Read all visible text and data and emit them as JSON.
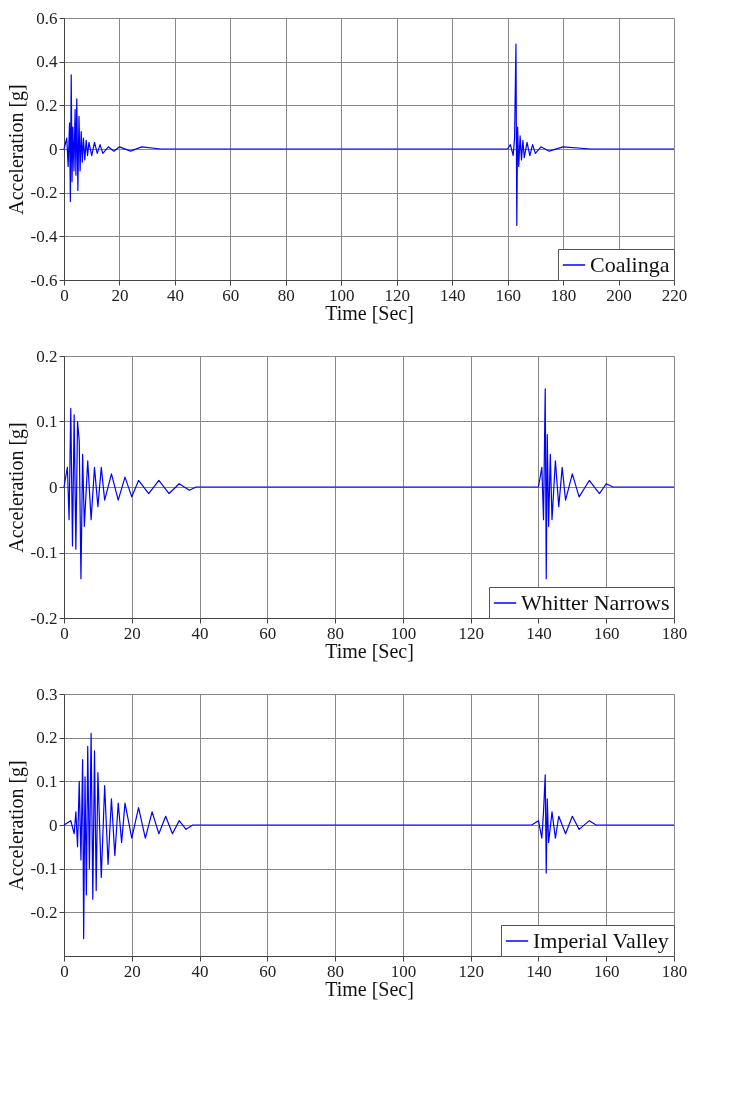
{
  "chart_data": [
    {
      "type": "line",
      "xlabel": "Time [Sec]",
      "ylabel": "Acceleration [g]",
      "xlim": [
        0,
        220
      ],
      "xticks": [
        0,
        20,
        40,
        60,
        80,
        100,
        120,
        140,
        160,
        180,
        200,
        220
      ],
      "ylim": [
        -0.6,
        0.6
      ],
      "yticks": [
        -0.6,
        -0.4,
        -0.2,
        0,
        0.2,
        0.4,
        0.6
      ],
      "grid": true,
      "legend": "bottom right",
      "line_style": "solid",
      "series": [
        {
          "name": "Coalinga",
          "color": "#0000ff",
          "x": [
            0,
            1,
            1.5,
            2,
            2.3,
            2.6,
            2.9,
            3.2,
            3.6,
            4,
            4.3,
            4.6,
            5,
            5.4,
            5.8,
            6.2,
            6.6,
            7,
            7.5,
            8,
            8.5,
            9,
            10,
            11,
            12,
            13,
            14,
            16,
            18,
            20,
            24,
            28,
            35,
            50,
            100,
            150,
            160,
            161,
            162,
            162.5,
            163,
            163.3,
            163.6,
            164,
            164.5,
            165,
            165.5,
            166,
            167,
            168,
            169,
            170,
            172,
            175,
            180,
            190,
            200,
            220
          ],
          "values": [
            0,
            0.05,
            -0.08,
            0.12,
            -0.24,
            0.34,
            -0.15,
            0.1,
            -0.1,
            0.18,
            -0.12,
            0.23,
            -0.19,
            0.15,
            -0.1,
            0.08,
            -0.06,
            0.05,
            -0.05,
            0.04,
            -0.03,
            0.03,
            -0.03,
            0.03,
            -0.02,
            0.02,
            -0.02,
            0.01,
            -0.01,
            0.01,
            -0.01,
            0.01,
            0,
            0,
            0,
            0,
            0,
            0.02,
            -0.03,
            0.05,
            0.48,
            -0.35,
            0.1,
            -0.08,
            0.06,
            -0.05,
            0.04,
            -0.04,
            0.03,
            -0.03,
            0.02,
            -0.02,
            0.01,
            -0.01,
            0.01,
            0,
            0,
            0
          ]
        }
      ]
    },
    {
      "type": "line",
      "xlabel": "Time [Sec]",
      "ylabel": "Acceleration [g]",
      "xlim": [
        0,
        180
      ],
      "xticks": [
        0,
        20,
        40,
        60,
        80,
        100,
        120,
        140,
        160,
        180
      ],
      "ylim": [
        -0.2,
        0.2
      ],
      "yticks": [
        -0.2,
        -0.1,
        0,
        0.1,
        0.2
      ],
      "grid": true,
      "legend": "bottom right",
      "line_style": "solid",
      "series": [
        {
          "name": "Whitter Narrows",
          "color": "#0000ff",
          "x": [
            0,
            1,
            1.5,
            2,
            2.5,
            3,
            3.5,
            4,
            4.5,
            5,
            5.5,
            6,
            7,
            8,
            9,
            10,
            11,
            12,
            14,
            16,
            18,
            20,
            22,
            25,
            28,
            31,
            34,
            37,
            39,
            50,
            100,
            140,
            141,
            141.5,
            142,
            142.3,
            142.6,
            143,
            143.5,
            144,
            145,
            146,
            147,
            148,
            150,
            152,
            155,
            158,
            160,
            162,
            170,
            180
          ],
          "values": [
            0,
            0.03,
            -0.05,
            0.12,
            -0.09,
            0.11,
            -0.095,
            0.1,
            0.07,
            -0.14,
            0.05,
            -0.06,
            0.04,
            -0.05,
            0.03,
            -0.03,
            0.03,
            -0.02,
            0.02,
            -0.02,
            0.015,
            -0.015,
            0.01,
            -0.01,
            0.01,
            -0.01,
            0.005,
            -0.005,
            0,
            0,
            0,
            0,
            0.03,
            -0.05,
            0.15,
            -0.14,
            0.08,
            -0.06,
            0.05,
            -0.05,
            0.04,
            -0.03,
            0.03,
            -0.02,
            0.02,
            -0.015,
            0.01,
            -0.01,
            0.005,
            0,
            0,
            0
          ]
        }
      ]
    },
    {
      "type": "line",
      "xlabel": "Time [Sec]",
      "ylabel": "Acceleration [g]",
      "xlim": [
        0,
        180
      ],
      "xticks": [
        0,
        20,
        40,
        60,
        80,
        100,
        120,
        140,
        160,
        180
      ],
      "ylim": [
        -0.3,
        0.3
      ],
      "yticks": [
        -0.2,
        -0.1,
        0,
        0.1,
        0.2,
        0.3
      ],
      "grid": true,
      "legend": "bottom right",
      "line_style": "solid",
      "series": [
        {
          "name": "Imperial Valley",
          "color": "#0000ff",
          "x": [
            0,
            2,
            3,
            3.5,
            4,
            4.5,
            5,
            5.5,
            5.8,
            6.2,
            6.6,
            7,
            7.5,
            8,
            8.5,
            9,
            9.5,
            10,
            11,
            12,
            13,
            14,
            15,
            16,
            17,
            18,
            20,
            22,
            24,
            26,
            28,
            30,
            32,
            34,
            36,
            38,
            50,
            100,
            138,
            140,
            141,
            141.5,
            142,
            142.3,
            142.6,
            143,
            144,
            145,
            146,
            148,
            150,
            152,
            155,
            157,
            160,
            180
          ],
          "values": [
            0,
            0.01,
            -0.02,
            0.03,
            -0.05,
            0.1,
            -0.08,
            0.15,
            -0.26,
            0.11,
            -0.16,
            0.18,
            -0.1,
            0.21,
            -0.17,
            0.17,
            -0.15,
            0.12,
            -0.12,
            0.09,
            -0.09,
            0.06,
            -0.07,
            0.05,
            -0.04,
            0.05,
            -0.03,
            0.04,
            -0.03,
            0.03,
            -0.02,
            0.02,
            -0.02,
            0.01,
            -0.01,
            0,
            0,
            0,
            0,
            0.01,
            -0.03,
            0.03,
            0.115,
            -0.11,
            0.06,
            -0.04,
            0.03,
            -0.03,
            0.02,
            -0.02,
            0.02,
            -0.01,
            0.01,
            0,
            0,
            0
          ]
        }
      ]
    }
  ]
}
